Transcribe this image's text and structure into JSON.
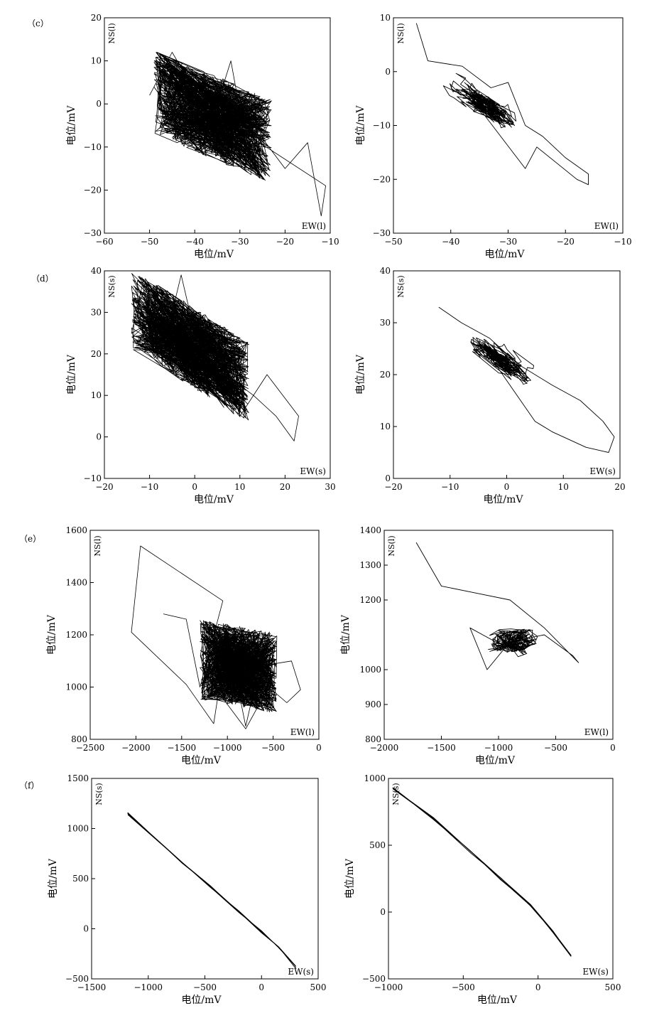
{
  "rows": [
    {
      "label": "（c）"
    },
    {
      "label": "（d）"
    },
    {
      "label": "（e）"
    },
    {
      "label": "（f）"
    }
  ],
  "chart_data": [
    {
      "type": "line",
      "row": "c",
      "col": "left",
      "xlabel": "电位/mV",
      "ylabel": "电位/mV",
      "trace_y_label": "NS(l)",
      "trace_x_label": "EW(l)",
      "xlim": [
        -60,
        -10
      ],
      "ylim": [
        -30,
        20
      ],
      "xticks": [
        "−60",
        "−50",
        "−40",
        "−30",
        "−20",
        "−10"
      ],
      "yticks": [
        "20",
        "10",
        "0",
        "−10",
        "−20",
        "−30"
      ],
      "grid": false,
      "shape": "dense",
      "series": [
        {
          "x": [
            -50,
            -45,
            -40,
            -35,
            -32,
            -28,
            -25,
            -20,
            -15,
            -12,
            -11
          ],
          "y": [
            2,
            12,
            3,
            0,
            10,
            -13,
            -8,
            -15,
            -9,
            -26,
            -19
          ]
        }
      ],
      "cluster": {
        "x_center": -36,
        "y_center": -3,
        "x_spread": 13,
        "y_spread": 14,
        "tilt": -0.45
      }
    },
    {
      "type": "line",
      "row": "c",
      "col": "right",
      "xlabel": "电位/mV",
      "ylabel": "电位/mV",
      "trace_y_label": "NS(l)",
      "trace_x_label": "EW(l)",
      "xlim": [
        -50,
        -10
      ],
      "ylim": [
        -30,
        10
      ],
      "xticks": [
        "−50",
        "−40",
        "−30",
        "−20",
        "−10"
      ],
      "yticks": [
        "10",
        "0",
        "−10",
        "−20",
        "−30"
      ],
      "grid": false,
      "shape": "loops",
      "series": [
        {
          "x": [
            -46,
            -44,
            -38,
            -33,
            -30,
            -27,
            -24,
            -20,
            -16,
            -16,
            -18,
            -25,
            -27
          ],
          "y": [
            9,
            2,
            1,
            -3,
            -2,
            -10,
            -12,
            -16,
            -19,
            -21,
            -20,
            -14,
            -18
          ]
        }
      ],
      "cluster": {
        "x_center": -34,
        "y_center": -6,
        "x_spread": 10,
        "y_spread": 9,
        "tilt": -0.6
      }
    },
    {
      "type": "line",
      "row": "d",
      "col": "left",
      "xlabel": "电位/mV",
      "ylabel": "电位/mV",
      "trace_y_label": "NS(s)",
      "trace_x_label": "EW(s)",
      "xlim": [
        -20,
        30
      ],
      "ylim": [
        -10,
        40
      ],
      "xticks": [
        "−20",
        "−10",
        "0",
        "10",
        "20",
        "30"
      ],
      "yticks": [
        "40",
        "30",
        "20",
        "10",
        "0",
        "−10"
      ],
      "grid": false,
      "shape": "dense",
      "series": [
        {
          "x": [
            -11,
            -8,
            -5,
            -3,
            0,
            3,
            7,
            10,
            16,
            23,
            22,
            18,
            13
          ],
          "y": [
            35,
            33,
            30,
            39,
            25,
            18,
            16,
            5,
            15,
            5,
            -1,
            5,
            10
          ]
        }
      ],
      "cluster": {
        "x_center": -1,
        "y_center": 22,
        "x_spread": 13,
        "y_spread": 14,
        "tilt": -0.7
      }
    },
    {
      "type": "line",
      "row": "d",
      "col": "right",
      "xlabel": "电位/mV",
      "ylabel": "电位/mV",
      "trace_y_label": "NS(s)",
      "trace_x_label": "EW(s)",
      "xlim": [
        -20,
        20
      ],
      "ylim": [
        0,
        40
      ],
      "xticks": [
        "−20",
        "−10",
        "0",
        "10",
        "20"
      ],
      "yticks": [
        "40",
        "30",
        "20",
        "10",
        "0"
      ],
      "grid": false,
      "shape": "loops",
      "series": [
        {
          "x": [
            -12,
            -8,
            -3,
            2,
            8,
            13,
            17,
            19,
            18,
            14,
            8,
            5
          ],
          "y": [
            33,
            30,
            27,
            22,
            18,
            15,
            11,
            8,
            5,
            6,
            9,
            11
          ]
        }
      ],
      "cluster": {
        "x_center": -1,
        "y_center": 23,
        "x_spread": 9,
        "y_spread": 9,
        "tilt": -0.75
      }
    },
    {
      "type": "line",
      "row": "e",
      "col": "left",
      "xlabel": "电位/mV",
      "ylabel": "电位/mV",
      "trace_y_label": "NS(l)",
      "trace_x_label": "EW(l)",
      "xlim": [
        -2500,
        0
      ],
      "ylim": [
        800,
        1600
      ],
      "xticks": [
        "−2500",
        "−2000",
        "−1500",
        "−1000",
        "−500",
        "0"
      ],
      "yticks": [
        "1600",
        "1400",
        "1200",
        "1000",
        "800"
      ],
      "grid": false,
      "shape": "dense",
      "series": [
        {
          "x": [
            -1700,
            -1450,
            -1300,
            -1050,
            -1950,
            -2050,
            -1450,
            -1150,
            -1000,
            -800,
            -650,
            -300,
            -200,
            -350,
            -550,
            -800
          ],
          "y": [
            1280,
            1260,
            1000,
            1330,
            1540,
            1210,
            1010,
            860,
            1200,
            850,
            1080,
            1100,
            990,
            940,
            1000,
            840
          ]
        }
      ],
      "cluster": {
        "x_center": -880,
        "y_center": 1080,
        "x_spread": 420,
        "y_spread": 220,
        "tilt": -0.2
      }
    },
    {
      "type": "line",
      "row": "e",
      "col": "right",
      "xlabel": "电位/mV",
      "ylabel": "电位/mV",
      "trace_y_label": "NS(l)",
      "trace_x_label": "EW(l)",
      "xlim": [
        -2000,
        0
      ],
      "ylim": [
        800,
        1400
      ],
      "xticks": [
        "−2000",
        "−1500",
        "−1000",
        "−500",
        "0"
      ],
      "yticks": [
        "1400",
        "1300",
        "1200",
        "1000",
        "900",
        "800"
      ],
      "ytick_values": [
        1400,
        1300,
        1200,
        1000,
        900,
        800
      ],
      "grid": false,
      "shape": "loops",
      "series": [
        {
          "x": [
            -1720,
            -1500,
            -1200,
            -900,
            -600,
            -300,
            -350,
            -600,
            -900,
            -1100,
            -1250
          ],
          "y": [
            1365,
            1240,
            1220,
            1200,
            1120,
            1020,
            1040,
            1100,
            1080,
            1000,
            1120
          ]
        }
      ],
      "cluster": {
        "x_center": -870,
        "y_center": 1080,
        "x_spread": 380,
        "y_spread": 150,
        "tilt": -0.1
      }
    },
    {
      "type": "line",
      "row": "f",
      "col": "left",
      "xlabel": "电位/mV",
      "ylabel": "电位/mV",
      "trace_y_label": "NS(s)",
      "trace_x_label": "EW(s)",
      "xlim": [
        -1500,
        500
      ],
      "ylim": [
        -500,
        1500
      ],
      "xticks": [
        "−1500",
        "−1000",
        "−500",
        "0",
        "500"
      ],
      "yticks": [
        "1500",
        "1000",
        "500",
        "0",
        "−500"
      ],
      "grid": false,
      "shape": "line",
      "series": [
        {
          "x": [
            -1180,
            -700,
            -450,
            -200,
            0,
            150,
            300
          ],
          "y": [
            1150,
            660,
            420,
            170,
            -30,
            -190,
            -380
          ]
        }
      ],
      "cluster": {
        "x_center": 0,
        "y_center": 0,
        "x_spread": 0,
        "y_spread": 0,
        "tilt": 0
      }
    },
    {
      "type": "line",
      "row": "f",
      "col": "right",
      "xlabel": "电位/mV",
      "ylabel": "电位/mV",
      "trace_y_label": "NS(s)",
      "trace_x_label": "EW(s)",
      "xlim": [
        -1000,
        500
      ],
      "ylim": [
        -500,
        1000
      ],
      "xticks": [
        "−1000",
        "−500",
        "0",
        "500"
      ],
      "yticks": [
        "1000",
        "500",
        "0",
        "−500"
      ],
      "grid": false,
      "shape": "line",
      "series": [
        {
          "x": [
            -970,
            -700,
            -450,
            -250,
            -50,
            100,
            220
          ],
          "y": [
            930,
            700,
            450,
            250,
            50,
            -150,
            -330
          ]
        }
      ],
      "cluster": {
        "x_center": 0,
        "y_center": 0,
        "x_spread": 0,
        "y_spread": 0,
        "tilt": 0
      }
    }
  ]
}
